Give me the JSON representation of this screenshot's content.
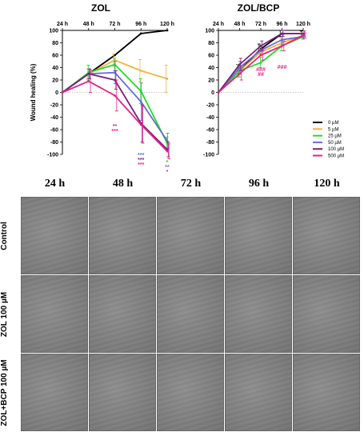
{
  "chart_data": [
    {
      "type": "line",
      "title": "ZOL",
      "categories": [
        "24 h",
        "48 h",
        "72 h",
        "96 h",
        "120 h"
      ],
      "ylabel": "Wound healing (%)",
      "xlabel": "",
      "ylim": [
        -100,
        100
      ],
      "yticks": [
        "100",
        "80",
        "60",
        "40",
        "20",
        "0",
        "-20",
        "-40",
        "-60",
        "-80",
        "-100"
      ],
      "grid": false,
      "series": [
        {
          "name": "0 µM",
          "color": "#000000",
          "values": [
            0,
            30,
            60,
            95,
            100
          ],
          "errors": [
            0,
            0,
            0,
            0,
            0
          ]
        },
        {
          "name": "5 µM",
          "color": "#f5b43a",
          "values": [
            0,
            30,
            52,
            35,
            22
          ],
          "errors": [
            0,
            8,
            10,
            18,
            22
          ]
        },
        {
          "name": "25 µM",
          "color": "#22dd22",
          "values": [
            0,
            32,
            45,
            2,
            -82
          ],
          "errors": [
            0,
            12,
            10,
            20,
            10
          ]
        },
        {
          "name": "50 µM",
          "color": "#6a6adb",
          "values": [
            0,
            30,
            32,
            -15,
            -78
          ],
          "errors": [
            0,
            8,
            18,
            30,
            12
          ]
        },
        {
          "name": "100 µM",
          "color": "#7b1f7b",
          "values": [
            0,
            30,
            20,
            -50,
            -92
          ],
          "errors": [
            0,
            8,
            15,
            30,
            12
          ]
        },
        {
          "name": "500 µM",
          "color": "#ec1f8c",
          "values": [
            0,
            18,
            -5,
            -52,
            -95
          ],
          "errors": [
            0,
            18,
            25,
            30,
            12
          ]
        }
      ],
      "annotations": [
        {
          "label": "**",
          "category": "72 h",
          "color": "#ec1f8c"
        },
        {
          "label": "***",
          "category": "72 h",
          "color": "#ec1f8c"
        },
        {
          "label": "***",
          "category": "96 h",
          "color": "#6a6adb"
        },
        {
          "label": "***",
          "category": "96 h",
          "color": "#7b1f7b"
        },
        {
          "label": "***",
          "category": "96 h",
          "color": "#ec1f8c"
        },
        {
          "label": "*",
          "category": "120 h",
          "color": "#22dd22"
        },
        {
          "label": "**",
          "category": "120 h",
          "color": "#6a6adb"
        },
        {
          "label": "*",
          "category": "120 h",
          "color": "#ec1f8c"
        }
      ]
    },
    {
      "type": "line",
      "title": "ZOL/BCP",
      "categories": [
        "24 h",
        "48 h",
        "72 h",
        "96 h",
        "120 h"
      ],
      "ylabel": "",
      "xlabel": "",
      "ylim": [
        -100,
        100
      ],
      "yticks": [
        "100",
        "80",
        "60",
        "40",
        "20",
        "0",
        "-20",
        "-40",
        "-60",
        "-80",
        "-100"
      ],
      "grid": false,
      "series": [
        {
          "name": "0 µM",
          "color": "#000000",
          "values": [
            0,
            35,
            70,
            95,
            95
          ],
          "errors": [
            0,
            10,
            8,
            5,
            4
          ]
        },
        {
          "name": "5 µM",
          "color": "#f5b43a",
          "values": [
            0,
            35,
            65,
            80,
            92
          ],
          "errors": [
            0,
            10,
            8,
            8,
            4
          ]
        },
        {
          "name": "25 µM",
          "color": "#22dd22",
          "values": [
            0,
            35,
            48,
            75,
            90
          ],
          "errors": [
            0,
            10,
            8,
            8,
            4
          ]
        },
        {
          "name": "50 µM",
          "color": "#6a6adb",
          "values": [
            0,
            40,
            68,
            85,
            90
          ],
          "errors": [
            0,
            10,
            8,
            8,
            4
          ]
        },
        {
          "name": "100 µM",
          "color": "#7b1f7b",
          "values": [
            0,
            45,
            75,
            95,
            95
          ],
          "errors": [
            0,
            10,
            8,
            5,
            4
          ]
        },
        {
          "name": "500 µM",
          "color": "#ec1f8c",
          "values": [
            0,
            30,
            60,
            75,
            92
          ],
          "errors": [
            0,
            10,
            8,
            8,
            4
          ]
        }
      ],
      "annotations": [
        {
          "label": "###",
          "category": "72 h",
          "color": "#ec1f8c"
        },
        {
          "label": "##",
          "category": "72 h",
          "color": "#ec1f8c"
        },
        {
          "label": "###",
          "category": "96 h",
          "color": "#ec1f8c"
        }
      ]
    }
  ],
  "legend": {
    "placement": "right",
    "items": [
      {
        "label": "0 µM",
        "color": "#000000"
      },
      {
        "label": "5 µM",
        "color": "#f5b43a"
      },
      {
        "label": "25 µM",
        "color": "#22dd22"
      },
      {
        "label": "50 µM",
        "color": "#6a6adb"
      },
      {
        "label": "100 µM",
        "color": "#7b1f7b"
      },
      {
        "label": "500 µM",
        "color": "#ec1f8c"
      }
    ]
  },
  "image_grid": {
    "columns": [
      "24 h",
      "48 h",
      "72 h",
      "96 h",
      "120 h"
    ],
    "rows": [
      "Control",
      "ZOL 100 µM",
      "ZOL+BCP 100 µM"
    ]
  }
}
